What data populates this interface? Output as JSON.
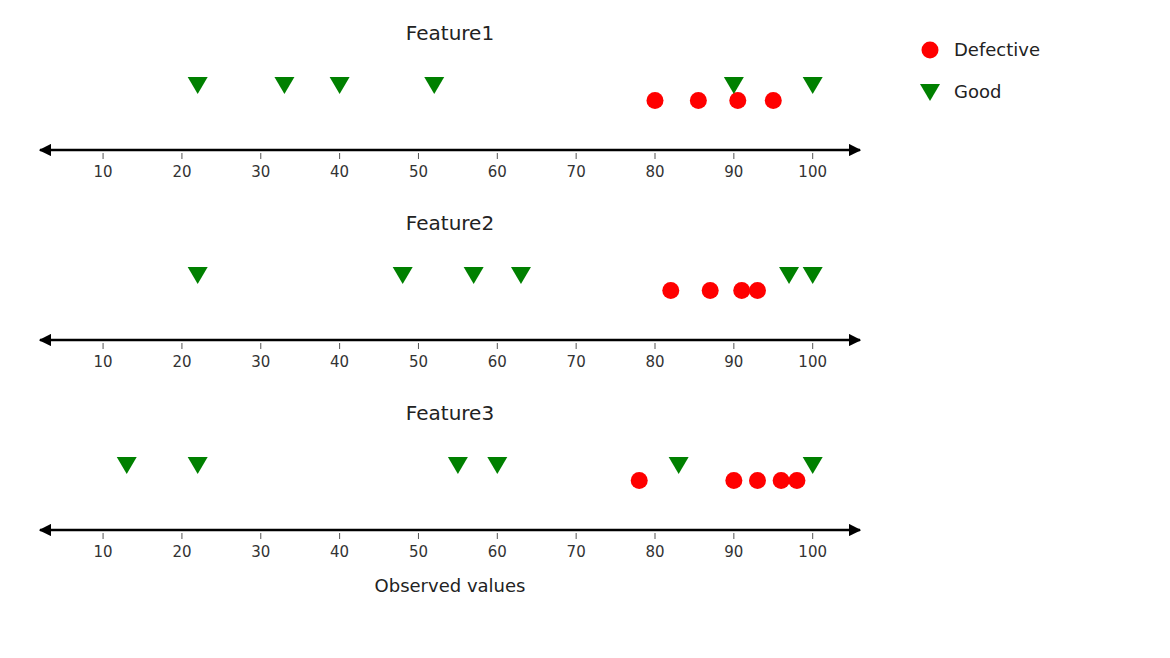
{
  "chart_data": [
    {
      "type": "strip",
      "title": "Feature1",
      "xlim": [
        2,
        106
      ],
      "xticks": [
        10,
        20,
        30,
        40,
        50,
        60,
        70,
        80,
        90,
        100
      ],
      "grid": false,
      "legend": "upper right",
      "series": [
        {
          "name": "Defective",
          "color": "#FF0000",
          "marker": "circle",
          "values": [
            80,
            85.5,
            90.5,
            95
          ]
        },
        {
          "name": "Good",
          "color": "#008000",
          "marker": "triangle-down",
          "values": [
            22,
            33,
            40,
            52,
            90,
            100
          ]
        }
      ]
    },
    {
      "type": "strip",
      "title": "Feature2",
      "xlim": [
        2,
        106
      ],
      "xticks": [
        10,
        20,
        30,
        40,
        50,
        60,
        70,
        80,
        90,
        100
      ],
      "grid": false,
      "series": [
        {
          "name": "Defective",
          "color": "#FF0000",
          "marker": "circle",
          "values": [
            82,
            87,
            91,
            93
          ]
        },
        {
          "name": "Good",
          "color": "#008000",
          "marker": "triangle-down",
          "values": [
            22,
            48,
            57,
            63,
            97,
            100
          ]
        }
      ]
    },
    {
      "type": "strip",
      "title": "Feature3",
      "x_label": "Observed values",
      "xlim": [
        2,
        106
      ],
      "xticks": [
        10,
        20,
        30,
        40,
        50,
        60,
        70,
        80,
        90,
        100
      ],
      "grid": false,
      "series": [
        {
          "name": "Defective",
          "color": "#FF0000",
          "marker": "circle",
          "values": [
            78,
            90,
            93,
            96,
            98
          ]
        },
        {
          "name": "Good",
          "color": "#008000",
          "marker": "triangle-down",
          "values": [
            13,
            22,
            55,
            60,
            83,
            100
          ]
        }
      ]
    }
  ]
}
